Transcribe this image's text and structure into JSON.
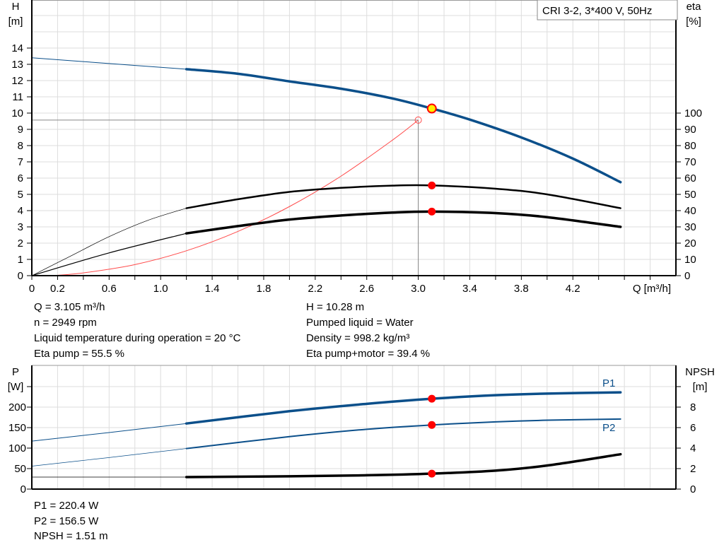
{
  "title_box": "CRI 3-2, 3*400 V, 50Hz",
  "colors": {
    "head": "#0b4f8a",
    "power": "#0b4f8a",
    "eta": "#000000",
    "npsh": "#000000",
    "system": "#ff4a4a",
    "duty_fill": "#ffee00",
    "marker": "#ff0000",
    "grid": "#dddddd"
  },
  "info_top": {
    "left": [
      "Q = 3.105 m³/h",
      "n = 2949 rpm",
      "Liquid temperature during operation = 20 °C",
      "Eta pump = 55.5 %"
    ],
    "right": [
      "H = 10.28 m",
      "Pumped liquid = Water",
      "Density = 998.2 kg/m³",
      "Eta pump+motor = 39.4 %"
    ]
  },
  "info_bottom": [
    "P1 = 220.4 W",
    "P2 = 156.5 W",
    "NPSH = 1.51 m"
  ],
  "chart_data": [
    {
      "type": "line",
      "xlabel": "Q [m³/h]",
      "ylabel_left": [
        "H",
        "[m]"
      ],
      "ylabel_right": [
        "eta",
        "[%]"
      ],
      "xlim": [
        0,
        5.0
      ],
      "ylim_left": [
        0,
        17
      ],
      "ylim_right": [
        0,
        100
      ],
      "x_ticks": [
        "0",
        "0.2",
        "0.6",
        "1.0",
        "1.4",
        "1.8",
        "2.2",
        "2.6",
        "3.0",
        "3.4",
        "3.8",
        "4.2"
      ],
      "y_ticks_left": [
        "0",
        "1",
        "2",
        "3",
        "4",
        "5",
        "6",
        "7",
        "8",
        "9",
        "10",
        "11",
        "12",
        "13",
        "14"
      ],
      "y_ticks_right": [
        "0",
        "10",
        "20",
        "30",
        "40",
        "50",
        "60",
        "70",
        "80",
        "90",
        "100"
      ],
      "grid": true,
      "thick_from_q": 1.2,
      "series": [
        {
          "key": "H",
          "axis": "left",
          "points": [
            [
              0,
              13.4
            ],
            [
              0.6,
              13.05
            ],
            [
              1.2,
              12.7
            ],
            [
              1.6,
              12.42
            ],
            [
              2.0,
              11.95
            ],
            [
              2.4,
              11.5
            ],
            [
              2.8,
              10.9
            ],
            [
              3.105,
              10.28
            ],
            [
              3.4,
              9.6
            ],
            [
              3.8,
              8.5
            ],
            [
              4.2,
              7.2
            ],
            [
              4.57,
              5.75
            ]
          ]
        },
        {
          "key": "eta_pump",
          "axis": "right",
          "points": [
            [
              0,
              0
            ],
            [
              0.3,
              12
            ],
            [
              0.6,
              24
            ],
            [
              0.9,
              34
            ],
            [
              1.2,
              41.5
            ],
            [
              1.6,
              47
            ],
            [
              2.0,
              51.5
            ],
            [
              2.4,
              54
            ],
            [
              2.8,
              55.4
            ],
            [
              3.105,
              55.5
            ],
            [
              3.6,
              53.5
            ],
            [
              4.0,
              50
            ],
            [
              4.57,
              41.5
            ]
          ]
        },
        {
          "key": "eta_total",
          "axis": "right",
          "points": [
            [
              0,
              0
            ],
            [
              0.6,
              14
            ],
            [
              1.2,
              26
            ],
            [
              1.6,
              30.5
            ],
            [
              2.0,
              34.5
            ],
            [
              2.4,
              37
            ],
            [
              2.8,
              38.8
            ],
            [
              3.105,
              39.4
            ],
            [
              3.6,
              38.5
            ],
            [
              4.0,
              36
            ],
            [
              4.57,
              30
            ]
          ]
        }
      ],
      "system_curve": {
        "axis": "left",
        "points": [
          [
            0.15,
            0
          ],
          [
            0.4,
            0.17
          ],
          [
            0.8,
            0.68
          ],
          [
            1.2,
            1.53
          ],
          [
            1.6,
            2.72
          ],
          [
            2.0,
            4.25
          ],
          [
            2.4,
            6.12
          ],
          [
            2.8,
            8.34
          ],
          [
            3.0,
            9.57
          ]
        ]
      },
      "crosshair": {
        "q": 3.0,
        "h": 9.57
      },
      "duty_point": {
        "q": 3.105,
        "h": 10.28,
        "eta_pump": 55.5,
        "eta_total": 39.4
      }
    },
    {
      "type": "line",
      "ylabel_left": [
        "P",
        "[W]"
      ],
      "ylabel_right": [
        "NPSH",
        "[m]"
      ],
      "xlim": [
        0,
        5.0
      ],
      "ylim_left": [
        0,
        300
      ],
      "ylim_right": [
        0,
        12
      ],
      "y_ticks_left": [
        "0",
        "50",
        "100",
        "150",
        "200"
      ],
      "y_ticks_right": [
        "0",
        "2",
        "4",
        "6",
        "8"
      ],
      "grid": true,
      "series": [
        {
          "key": "P1",
          "name": "P1",
          "axis": "left",
          "points": [
            [
              0,
              117
            ],
            [
              0.6,
              138
            ],
            [
              1.2,
              160
            ],
            [
              2.0,
              190
            ],
            [
              2.6,
              208
            ],
            [
              3.105,
              220.4
            ],
            [
              3.6,
              229
            ],
            [
              4.0,
              233
            ],
            [
              4.57,
              236
            ]
          ]
        },
        {
          "key": "P2",
          "name": "P2",
          "axis": "left",
          "points": [
            [
              0,
              56
            ],
            [
              0.6,
              77
            ],
            [
              1.2,
              99
            ],
            [
              2.0,
              128
            ],
            [
              2.6,
              146
            ],
            [
              3.105,
              156.5
            ],
            [
              3.6,
              164
            ],
            [
              4.0,
              168
            ],
            [
              4.57,
              171
            ]
          ]
        },
        {
          "key": "NPSH",
          "axis": "right",
          "points": [
            [
              0,
              1.17
            ],
            [
              1.2,
              1.17
            ],
            [
              2.0,
              1.25
            ],
            [
              2.6,
              1.35
            ],
            [
              3.105,
              1.51
            ],
            [
              3.6,
              1.8
            ],
            [
              4.0,
              2.3
            ],
            [
              4.57,
              3.4
            ]
          ]
        }
      ],
      "duty_point": {
        "q": 3.105,
        "p1": 220.4,
        "p2": 156.5,
        "npsh": 1.51
      }
    }
  ]
}
